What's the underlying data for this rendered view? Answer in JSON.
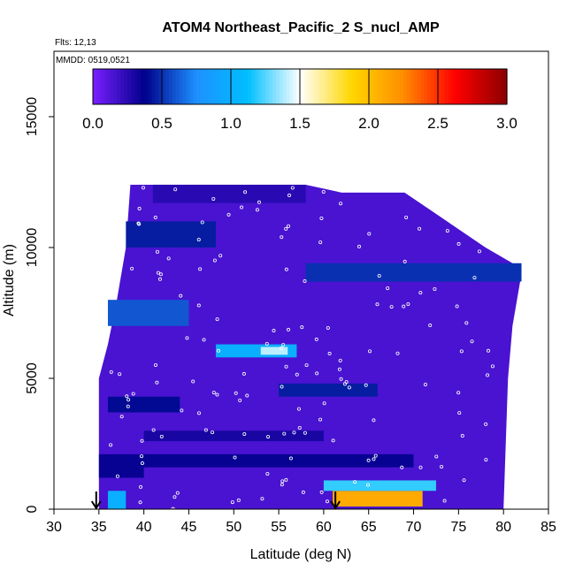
{
  "chart_data": {
    "type": "heatmap",
    "title": "ATOM4 Northeast_Pacific_2 S_nucl_AMP",
    "flights_label": "Flts: 12,13",
    "dates_label": "MMDD: 0519,0521",
    "xlabel": "Latitude (deg N)",
    "ylabel": "Altitude (m)",
    "xlim": [
      30,
      85
    ],
    "ylim": [
      0,
      17500
    ],
    "x_ticks": [
      "30",
      "35",
      "40",
      "45",
      "50",
      "55",
      "60",
      "65",
      "70",
      "75",
      "80",
      "85"
    ],
    "y_ticks": [
      "0",
      "5000",
      "10000",
      "15000"
    ],
    "colorbar": {
      "range": [
        0,
        3
      ],
      "ticks": [
        "0.0",
        "0.5",
        "1.0",
        "1.5",
        "2.0",
        "2.5",
        "3.0"
      ],
      "colors": [
        "#7a1fff",
        "#00008b",
        "#1e90ff",
        "#00bfff",
        "#ffffff",
        "#ffd700",
        "#ff8c00",
        "#ff0000",
        "#8b0000"
      ]
    },
    "background_value": 0.15,
    "grid": false,
    "arrows_at_latitude": [
      34.7,
      61.3
    ],
    "altitude_top_by_latitude": [
      {
        "lat": 35.0,
        "alt": 5000
      },
      {
        "lat": 36.0,
        "alt": 6300
      },
      {
        "lat": 37.0,
        "alt": 8000
      },
      {
        "lat": 38.0,
        "alt": 10000
      },
      {
        "lat": 38.5,
        "alt": 12400
      },
      {
        "lat": 58.0,
        "alt": 12400
      },
      {
        "lat": 62.0,
        "alt": 12100
      },
      {
        "lat": 69.0,
        "alt": 12100
      },
      {
        "lat": 72.0,
        "alt": 11400
      },
      {
        "lat": 78.0,
        "alt": 10000
      },
      {
        "lat": 82.0,
        "alt": 9200
      },
      {
        "lat": 82.0,
        "alt": 9000
      },
      {
        "lat": 81.0,
        "alt": 7000
      },
      {
        "lat": 80.5,
        "alt": 5000
      },
      {
        "lat": 80.0,
        "alt": 0
      }
    ],
    "features": [
      {
        "lat": [
          61.0,
          71.0
        ],
        "alt": [
          100,
          700
        ],
        "value": 2.1
      },
      {
        "lat": [
          60.0,
          72.5
        ],
        "alt": [
          700,
          1100
        ],
        "value": 1.2
      },
      {
        "lat": [
          40.0,
          70.0
        ],
        "alt": [
          1600,
          2100
        ],
        "value": 0.35
      },
      {
        "lat": [
          35.0,
          40.0
        ],
        "alt": [
          1200,
          2100
        ],
        "value": 0.35
      },
      {
        "lat": [
          48.0,
          57.0
        ],
        "alt": [
          5800,
          6300
        ],
        "value": 1.0
      },
      {
        "lat": [
          53.0,
          56.0
        ],
        "alt": [
          5900,
          6200
        ],
        "value": 1.4
      },
      {
        "lat": [
          58.0,
          82.0
        ],
        "alt": [
          8700,
          9400
        ],
        "value": 0.5
      },
      {
        "lat": [
          36.0,
          45.0
        ],
        "alt": [
          7000,
          8000
        ],
        "value": 0.6
      },
      {
        "lat": [
          38.0,
          48.0
        ],
        "alt": [
          10000,
          11000
        ],
        "value": 0.45
      },
      {
        "lat": [
          41.0,
          58.0
        ],
        "alt": [
          11700,
          12400
        ],
        "value": 0.25
      },
      {
        "lat": [
          36.0,
          38.0
        ],
        "alt": [
          0,
          700
        ],
        "value": 1.0
      },
      {
        "lat": [
          55.0,
          66.0
        ],
        "alt": [
          4300,
          4800
        ],
        "value": 0.45
      },
      {
        "lat": [
          36.0,
          44.0
        ],
        "alt": [
          3700,
          4300
        ],
        "value": 0.4
      },
      {
        "lat": [
          40.0,
          60.0
        ],
        "alt": [
          2600,
          3000
        ],
        "value": 0.3
      }
    ]
  }
}
